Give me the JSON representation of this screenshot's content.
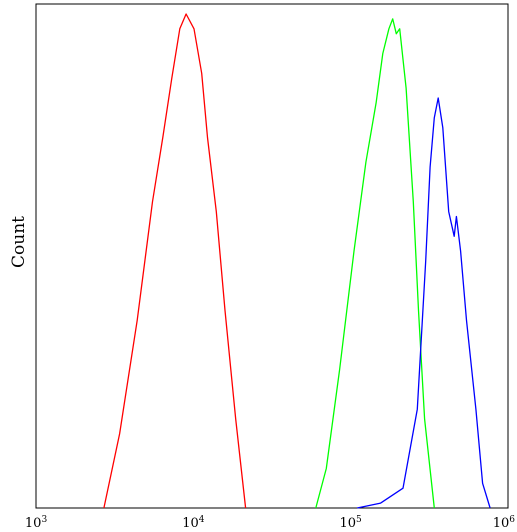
{
  "chart_data": {
    "type": "line",
    "title": "",
    "xlabel": "",
    "ylabel": "Count",
    "x_scale": "log",
    "xlim": [
      1000,
      1000000
    ],
    "ylim": [
      0,
      100
    ],
    "grid": false,
    "x_ticks": [
      {
        "value": 1000,
        "base": "10",
        "exp": "3"
      },
      {
        "value": 10000,
        "base": "10",
        "exp": "4"
      },
      {
        "value": 100000,
        "base": "10",
        "exp": "5"
      },
      {
        "value": 1000000,
        "base": "10",
        "exp": "6"
      }
    ],
    "series": [
      {
        "color": "#ff0000",
        "x": [
          2700,
          3400,
          4400,
          5500,
          6400,
          7300,
          8200,
          9000,
          10100,
          11300,
          12300,
          14000,
          15900,
          18600,
          21500
        ],
        "y": [
          0,
          15,
          38,
          62,
          75,
          87,
          97,
          100,
          97,
          88,
          75,
          60,
          40,
          18,
          0
        ]
      },
      {
        "color": "#00ff00",
        "x": [
          60000,
          70000,
          85000,
          105000,
          125000,
          145000,
          160000,
          175000,
          185000,
          195000,
          205000,
          225000,
          250000,
          270000,
          295000,
          340000
        ],
        "y": [
          0,
          8,
          28,
          52,
          70,
          82,
          92,
          97,
          99,
          96,
          97,
          85,
          62,
          40,
          18,
          0
        ]
      },
      {
        "color": "#0000ff",
        "x": [
          110000,
          155000,
          215000,
          265000,
          300000,
          320000,
          340000,
          360000,
          385000,
          420000,
          455000,
          470000,
          500000,
          545000,
          625000,
          690000,
          770000
        ],
        "y": [
          0,
          1,
          4,
          20,
          50,
          69,
          79,
          83,
          77,
          60,
          55,
          59,
          52,
          38,
          20,
          5,
          0
        ]
      }
    ]
  }
}
